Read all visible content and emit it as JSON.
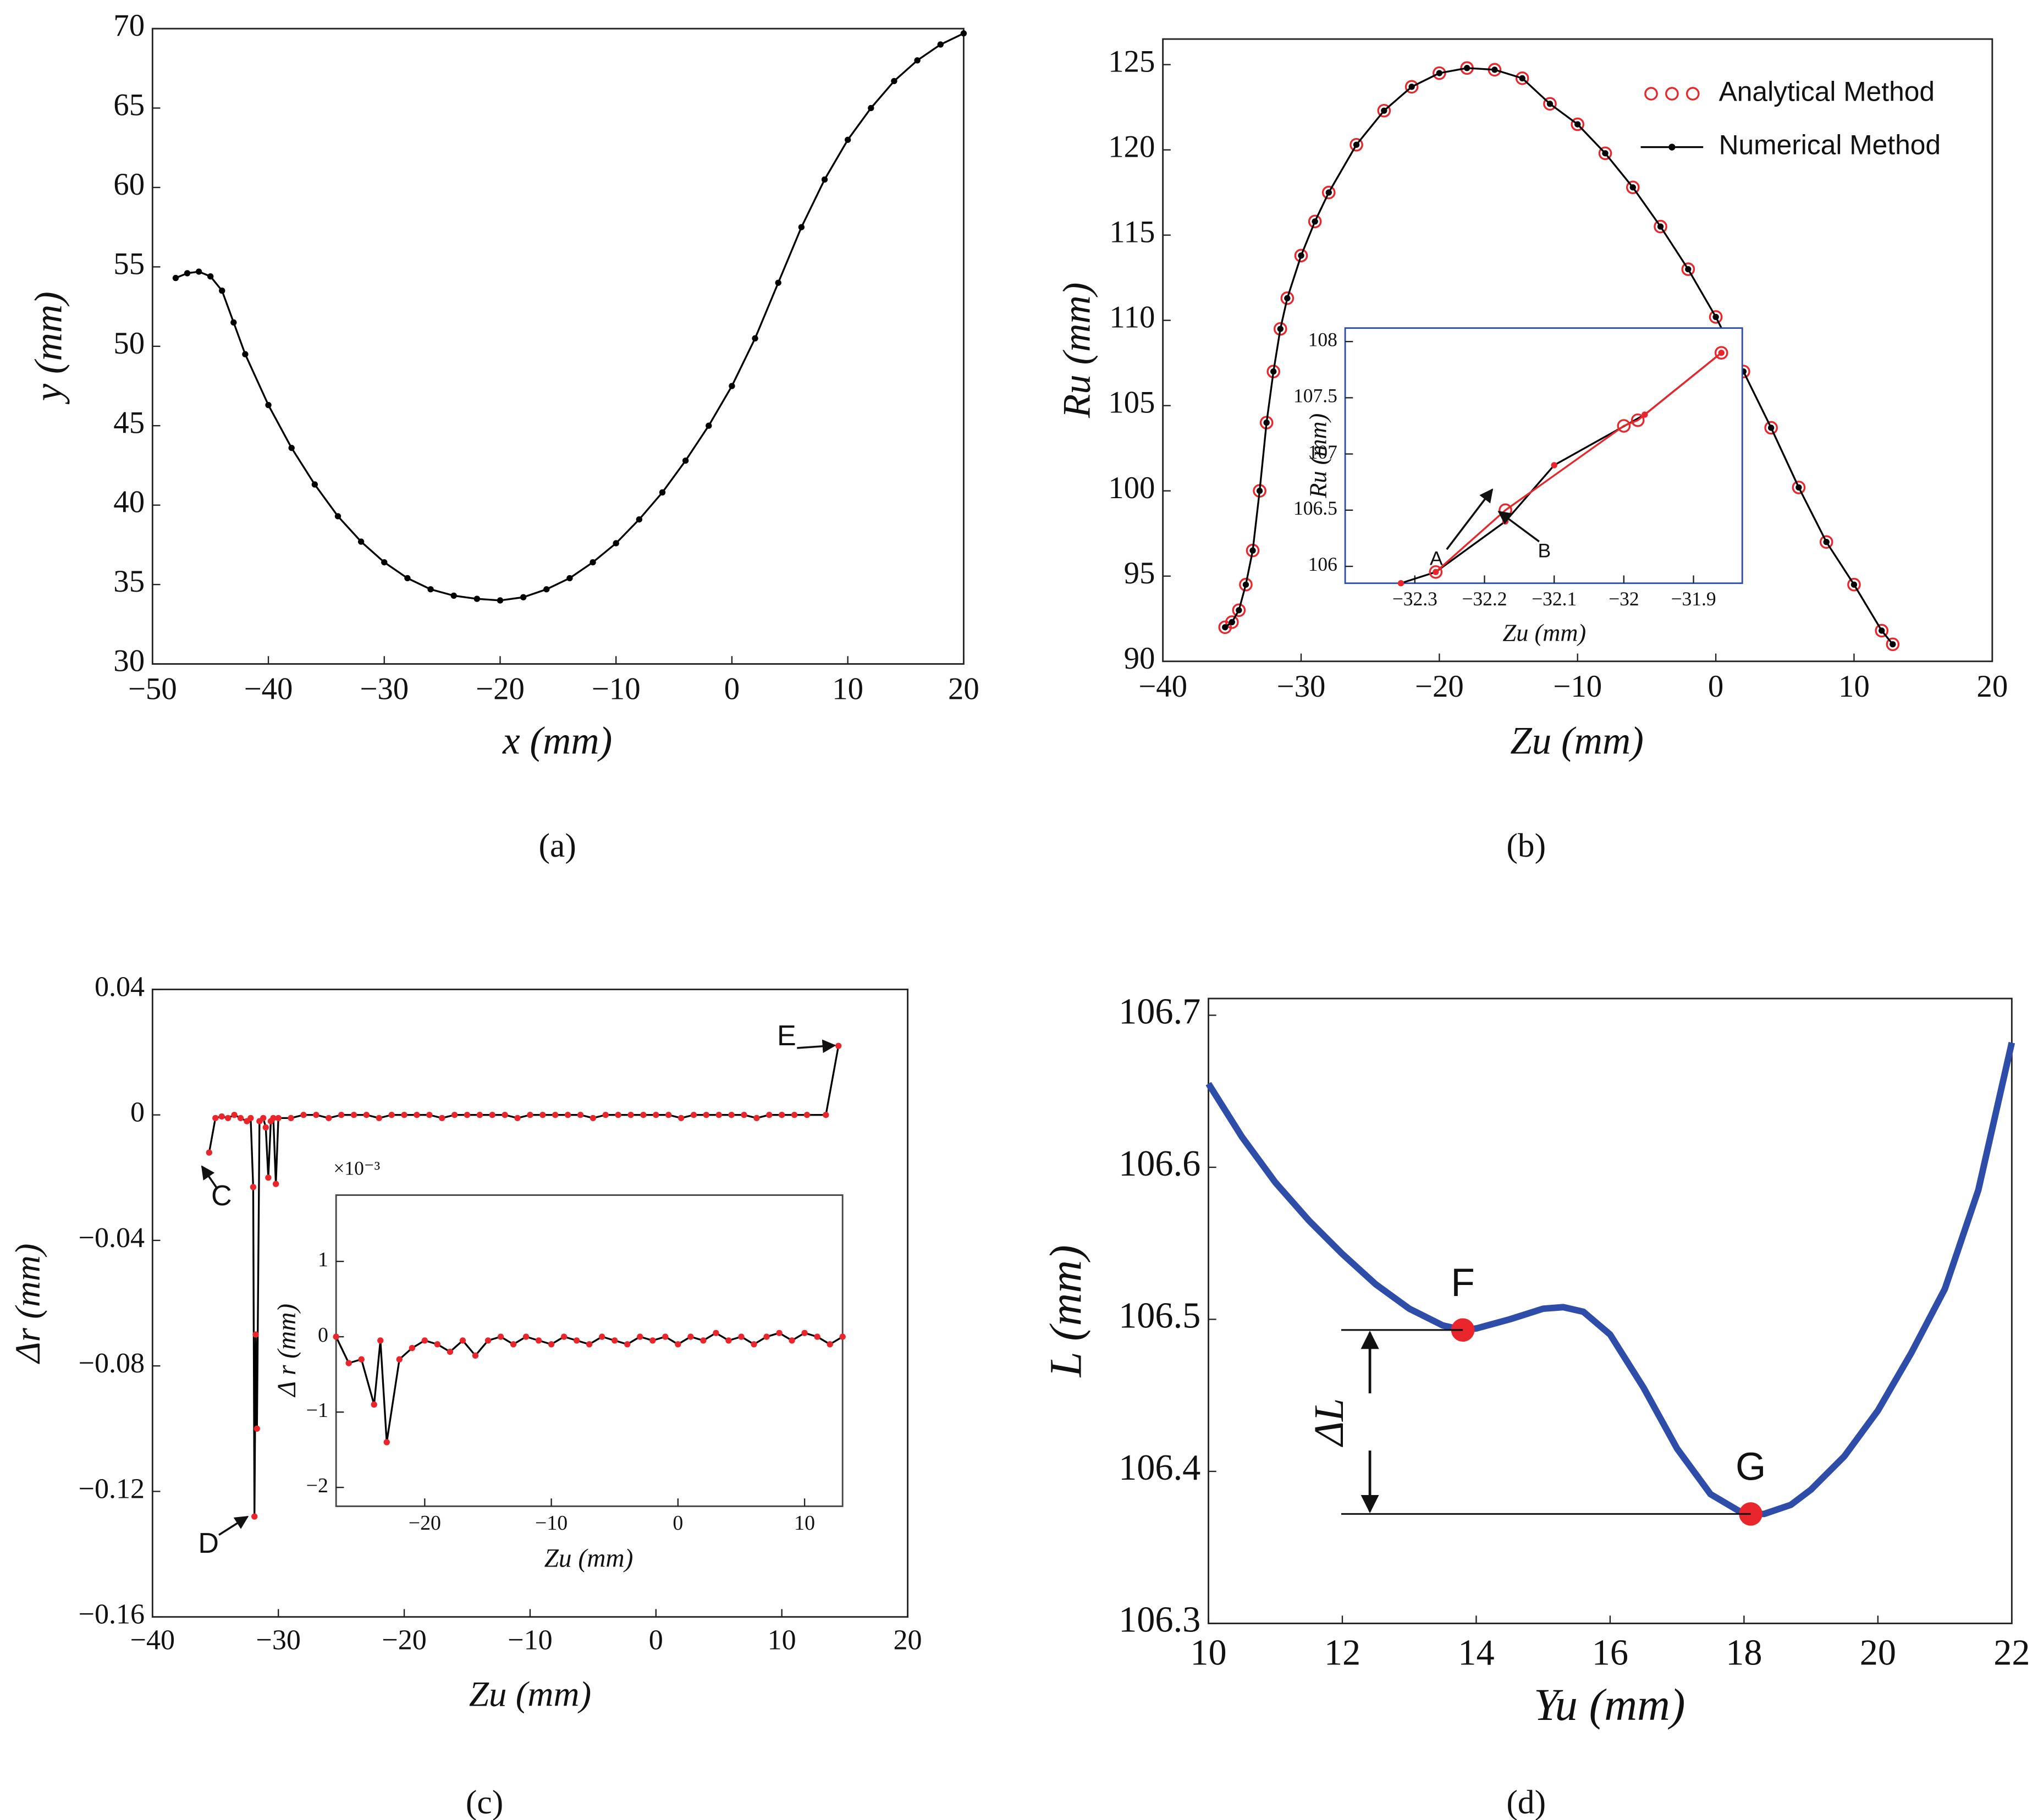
{
  "chart_data": [
    {
      "type": "line",
      "label": "(a)",
      "xlabel": "x (mm)",
      "ylabel": "y (mm)",
      "xlim": [
        -50,
        20
      ],
      "ylim": [
        30,
        70
      ],
      "xticks": [
        {
          "value": -50,
          "label": "−50"
        },
        {
          "value": -40,
          "label": "−40"
        },
        {
          "value": -30,
          "label": "−30"
        },
        {
          "value": -20,
          "label": "−20"
        },
        {
          "value": -10,
          "label": "−10"
        },
        0,
        10,
        20
      ],
      "yticks": [
        30,
        35,
        40,
        45,
        50,
        55,
        60,
        65,
        70
      ],
      "series": [
        {
          "color": "#000000",
          "marker": "dot",
          "x": [
            -48,
            -47,
            -46,
            -45,
            -44,
            -43,
            -42,
            -40,
            -38,
            -36,
            -34,
            -32,
            -30,
            -28,
            -26,
            -24,
            -22,
            -20,
            -18,
            -16,
            -14,
            -12,
            -10,
            -8,
            -6,
            -4,
            -2,
            0,
            2,
            4,
            6,
            8,
            10,
            12,
            14,
            16,
            18,
            20
          ],
          "values": [
            54.3,
            54.6,
            54.7,
            54.4,
            53.5,
            51.5,
            49.5,
            46.3,
            43.6,
            41.3,
            39.3,
            37.7,
            36.4,
            35.4,
            34.7,
            34.3,
            34.1,
            34.0,
            34.2,
            34.7,
            35.4,
            36.4,
            37.6,
            39.1,
            40.8,
            42.8,
            45.0,
            47.5,
            50.5,
            54.0,
            57.5,
            60.5,
            63.0,
            65.0,
            66.7,
            68.0,
            69.0,
            69.7
          ]
        }
      ]
    },
    {
      "type": "line",
      "label": "(b)",
      "xlabel": "Zu (mm)",
      "ylabel": "Ru (mm)",
      "xlim": [
        -40,
        20
      ],
      "ylim": [
        90,
        126.5
      ],
      "xticks": [
        {
          "value": -40,
          "label": "−40"
        },
        {
          "value": -30,
          "label": "−30"
        },
        {
          "value": -20,
          "label": "−20"
        },
        {
          "value": -10,
          "label": "−10"
        },
        0,
        10,
        20
      ],
      "yticks": [
        90,
        95,
        100,
        105,
        110,
        115,
        120,
        125
      ],
      "legend": "upper right",
      "series": [
        {
          "name": "Analytical Method",
          "color": "#e8262b",
          "marker": "circle",
          "line": false,
          "x": [
            -35.5,
            -35,
            -34.5,
            -34,
            -33.5,
            -33,
            -32.5,
            -32,
            -31.5,
            -31,
            -30,
            -29,
            -28,
            -26,
            -24,
            -22,
            -20,
            -18,
            -16,
            -14,
            -12,
            -10,
            -8,
            -6,
            -4,
            -2,
            0,
            2,
            4,
            6,
            8,
            10,
            12,
            12.8
          ],
          "values": [
            92,
            92.3,
            93,
            94.5,
            96.5,
            100,
            104,
            107,
            109.5,
            111.3,
            113.8,
            115.8,
            117.5,
            120.3,
            122.3,
            123.7,
            124.5,
            124.8,
            124.7,
            124.2,
            122.7,
            121.5,
            119.8,
            117.8,
            115.5,
            113,
            110.2,
            107,
            103.7,
            100.2,
            97,
            94.5,
            91.8,
            91
          ]
        },
        {
          "name": "Numerical Method",
          "color": "#000000",
          "marker": "dot",
          "x": [
            -35.5,
            -35,
            -34.5,
            -34,
            -33.5,
            -33,
            -32.5,
            -32,
            -31.5,
            -31,
            -30,
            -29,
            -28,
            -26,
            -24,
            -22,
            -20,
            -18,
            -16,
            -14,
            -12,
            -10,
            -8,
            -6,
            -4,
            -2,
            0,
            2,
            4,
            6,
            8,
            10,
            12,
            12.8
          ],
          "values": [
            92,
            92.3,
            93,
            94.5,
            96.5,
            100,
            104,
            107,
            109.5,
            111.3,
            113.8,
            115.8,
            117.5,
            120.3,
            122.3,
            123.7,
            124.5,
            124.8,
            124.7,
            124.2,
            122.7,
            121.5,
            119.8,
            117.8,
            115.5,
            113,
            110.2,
            107,
            103.7,
            100.2,
            97,
            94.5,
            91.8,
            91
          ]
        }
      ],
      "inset": {
        "xlabel": "Zu (mm)",
        "ylabel": "Ru (mm)",
        "xlim": [
          -32.4,
          -31.83
        ],
        "ylim": [
          105.85,
          108.12
        ],
        "xticks": [
          {
            "value": -32.3,
            "label": "−32.3"
          },
          {
            "value": -32.2,
            "label": "−32.2"
          },
          {
            "value": -32.1,
            "label": "−32.1"
          },
          {
            "value": -32,
            "label": "−32"
          },
          {
            "value": -31.9,
            "label": "−31.9"
          }
        ],
        "yticks": [
          106,
          106.5,
          107,
          107.5,
          108
        ],
        "annotations": [
          "A",
          "B"
        ],
        "series": [
          {
            "color": "#000000",
            "marker": "dot",
            "marker_color": "#e8262b",
            "x": [
              -32.32,
              -32.27,
              -32.17,
              -32.1,
              -31.97,
              -31.86
            ],
            "values": [
              105.85,
              105.95,
              106.4,
              106.9,
              107.35,
              107.9
            ]
          },
          {
            "color": "#e8262b",
            "marker": "circle",
            "x": [
              -32.27,
              -32.17,
              -32.0,
              -31.98,
              -31.86
            ],
            "values": [
              105.95,
              106.5,
              107.25,
              107.3,
              107.9
            ]
          }
        ]
      }
    },
    {
      "type": "line",
      "label": "(c)",
      "xlabel": "Zu (mm)",
      "ylabel": "Δr (mm)",
      "xlim": [
        -40,
        20
      ],
      "ylim": [
        -0.16,
        0.04
      ],
      "xticks": [
        {
          "value": -40,
          "label": "−40"
        },
        {
          "value": -30,
          "label": "−30"
        },
        {
          "value": -20,
          "label": "−20"
        },
        {
          "value": -10,
          "label": "−10"
        },
        0,
        10,
        20
      ],
      "yticks": [
        {
          "value": -0.16,
          "label": "−0.16"
        },
        {
          "value": -0.12,
          "label": "−0.12"
        },
        {
          "value": -0.08,
          "label": "−0.08"
        },
        {
          "value": -0.04,
          "label": "−0.04"
        },
        0,
        0.04
      ],
      "annotations": [
        "C",
        "D",
        "E"
      ],
      "series": [
        {
          "color": "#000000",
          "marker": "dot",
          "marker_color": "#e8262b",
          "x": [
            -35.5,
            -35,
            -34.5,
            -34,
            -33.5,
            -33,
            -32.5,
            -32.2,
            -32,
            -31.9,
            -31.8,
            -31.7,
            -31.5,
            -31.2,
            -31,
            -30.8,
            -30.6,
            -30.4,
            -30.2,
            -30,
            -29,
            -28,
            -27,
            -26,
            -25,
            -24,
            -23,
            -22,
            -21,
            -20,
            -19,
            -18,
            -17,
            -16,
            -15,
            -14,
            -13,
            -12,
            -11,
            -10,
            -9,
            -8,
            -7,
            -6,
            -5,
            -4,
            -3,
            -2,
            -1,
            0,
            1,
            2,
            3,
            4,
            5,
            6,
            7,
            8,
            9,
            10,
            11,
            12,
            13.5,
            14.5
          ],
          "values": [
            -0.012,
            -0.001,
            -0.0005,
            -0.001,
            0,
            -0.001,
            -0.002,
            -0.001,
            -0.023,
            -0.128,
            -0.07,
            -0.1,
            -0.002,
            -0.001,
            -0.004,
            -0.02,
            -0.002,
            -0.001,
            -0.022,
            -0.001,
            -0.001,
            0,
            0,
            -0.001,
            0,
            0,
            0,
            -0.001,
            0,
            0,
            0,
            0,
            -0.001,
            0,
            0,
            0,
            0,
            0,
            -0.001,
            0,
            0,
            0,
            0,
            0,
            -0.001,
            0,
            0,
            0,
            0,
            0,
            0,
            -0.001,
            0,
            0,
            0,
            0,
            0,
            -0.001,
            0,
            0,
            0,
            0,
            0,
            0.022
          ]
        }
      ],
      "inset": {
        "xlabel": "Zu (mm)",
        "ylabel": "Δ r (mm)",
        "multiplier": "×10⁻³",
        "xlim": [
          -27,
          13
        ],
        "ylim": [
          -2.25,
          1.88
        ],
        "xticks": [
          {
            "value": -20,
            "label": "−20"
          },
          {
            "value": -10,
            "label": "−10"
          },
          0,
          10
        ],
        "yticks": [
          {
            "value": -2,
            "label": "−2"
          },
          {
            "value": -1,
            "label": "−1"
          },
          0,
          1
        ],
        "series": [
          {
            "color": "#000000",
            "marker": "dot",
            "marker_color": "#e8262b",
            "x": [
              -27,
              -26,
              -25,
              -24,
              -23.5,
              -23,
              -22,
              -21,
              -20,
              -19,
              -18,
              -17,
              -16,
              -15,
              -14,
              -13,
              -12,
              -11,
              -10,
              -9,
              -8,
              -7,
              -6,
              -5,
              -4,
              -3,
              -2,
              -1,
              0,
              1,
              2,
              3,
              4,
              5,
              6,
              7,
              8,
              9,
              10,
              11,
              12,
              13
            ],
            "values": [
              0,
              -0.35,
              -0.3,
              -0.9,
              -0.05,
              -1.4,
              -0.3,
              -0.15,
              -0.05,
              -0.1,
              -0.2,
              -0.05,
              -0.25,
              -0.05,
              0,
              -0.1,
              0,
              -0.05,
              -0.1,
              0,
              -0.05,
              -0.1,
              0,
              -0.05,
              -0.1,
              0,
              -0.05,
              0,
              -0.1,
              0,
              -0.05,
              0.05,
              -0.05,
              0,
              -0.1,
              0,
              0.05,
              -0.05,
              0.05,
              0,
              -0.1,
              0
            ]
          }
        ]
      }
    },
    {
      "type": "line",
      "label": "(d)",
      "xlabel": "Yu (mm)",
      "ylabel": "L (mm)",
      "delta_label": "ΔL",
      "xlim": [
        10,
        22
      ],
      "ylim": [
        106.3,
        106.711
      ],
      "xticks": [
        10,
        12,
        14,
        16,
        18,
        20,
        22
      ],
      "yticks": [
        106.3,
        106.4,
        106.5,
        106.6,
        106.7
      ],
      "series": [
        {
          "color": "#2e4da8",
          "width": 5,
          "x": [
            10,
            10.5,
            11,
            11.5,
            12,
            12.5,
            13,
            13.5,
            13.8,
            14,
            14.5,
            15,
            15.3,
            15.6,
            16,
            16.5,
            17,
            17.5,
            18,
            18.3,
            18.7,
            19,
            19.5,
            20,
            20.5,
            21,
            21.5,
            22
          ],
          "values": [
            106.655,
            106.62,
            106.59,
            106.565,
            106.543,
            106.523,
            106.507,
            106.496,
            106.493,
            106.494,
            106.5,
            106.507,
            106.508,
            106.505,
            106.49,
            106.455,
            106.415,
            106.385,
            106.372,
            106.372,
            106.378,
            106.388,
            106.41,
            106.44,
            106.478,
            106.52,
            106.585,
            106.682
          ]
        },
        {
          "color": "#e8262b",
          "marker": "big",
          "line": false,
          "labels": [
            "F",
            "G"
          ],
          "x": [
            13.8,
            18.1
          ],
          "values": [
            106.493,
            106.372
          ]
        }
      ]
    }
  ]
}
